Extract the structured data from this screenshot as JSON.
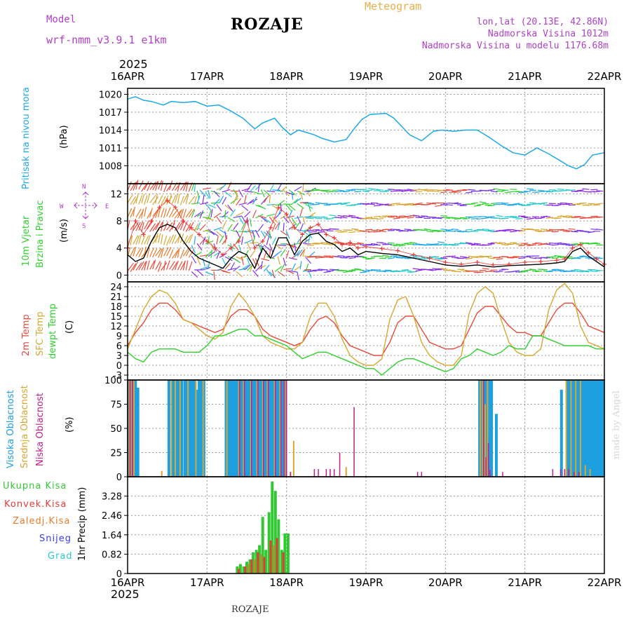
{
  "header": {
    "model_label": "Model",
    "model_name": "wrf-nmm_v3.9.1 e1km",
    "title": "ROZAJE",
    "meteogram_label": "Meteogram",
    "coords": "lon,lat (20.13E, 42.86N)",
    "elevation": "Nadmorska Visina 1012m",
    "model_elevation": "Nadmorska Visina u modelu 1176.68m",
    "year": "2025",
    "bottom_station": "ROZAJE",
    "credit": "made by Angel"
  },
  "colors": {
    "pressure": "#1ea8e8",
    "wind_speed": "#000000",
    "wind_gust_marker": "#ee3333",
    "t2m": "#e84a3a",
    "sfc": "#d6a832",
    "dewpt": "#2fd12f",
    "cloud_high": "#1e9fe0",
    "cloud_mid": "#d6a832",
    "cloud_low": "#c0208a",
    "precip_total": "#32c832",
    "precip_conv": "#e83a3a",
    "precip_frozen": "#e87a28",
    "snow": "#3a3ae8",
    "grad": "#28c8c8",
    "label_purple": "#b040c8",
    "label_orange": "#e8b048"
  },
  "x_ticks": [
    "16APR",
    "17APR",
    "18APR",
    "19APR",
    "20APR",
    "21APR",
    "22APR"
  ],
  "chart_data": [
    {
      "type": "line",
      "id": "pressure",
      "ylabel": "(hPa)",
      "side_labels": [
        "Pritisak na nivou mora"
      ],
      "ylim": [
        1005,
        1021
      ],
      "yticks": [
        1008,
        1011,
        1014,
        1017,
        1020
      ],
      "x_days": [
        0,
        0.1,
        0.2,
        0.3,
        0.45,
        0.55,
        0.7,
        0.85,
        1.0,
        1.15,
        1.3,
        1.45,
        1.6,
        1.7,
        1.85,
        1.95,
        2.05,
        2.15,
        2.25,
        2.35,
        2.45,
        2.6,
        2.75,
        2.85,
        2.95,
        3.05,
        3.15,
        3.25,
        3.35,
        3.45,
        3.55,
        3.7,
        3.85,
        3.95,
        4.1,
        4.25,
        4.4,
        4.55,
        4.7,
        4.85,
        5.0,
        5.15,
        5.3,
        5.45,
        5.55,
        5.65,
        5.75,
        5.85,
        6.0
      ],
      "series": [
        {
          "values": [
            1019.2,
            1019.6,
            1019.0,
            1018.8,
            1018.2,
            1018.8,
            1018.6,
            1018.8,
            1018.0,
            1018.2,
            1017.2,
            1016.0,
            1014.2,
            1015.2,
            1016.0,
            1014.4,
            1013.2,
            1014.0,
            1013.6,
            1013.2,
            1012.6,
            1012.0,
            1012.4,
            1014.2,
            1015.8,
            1016.6,
            1016.7,
            1016.8,
            1016.0,
            1014.6,
            1013.2,
            1012.2,
            1013.8,
            1014.0,
            1013.8,
            1014.0,
            1014.0,
            1012.8,
            1011.4,
            1010.2,
            1009.8,
            1011.0,
            1010.0,
            1008.8,
            1008.0,
            1007.5,
            1008.2,
            1009.8,
            1010.2
          ]
        }
      ]
    },
    {
      "type": "line",
      "id": "wind",
      "ylabel": "(m/s)",
      "side_labels": [
        "10m Vjetar",
        "Brzina i Pravac"
      ],
      "compass": [
        "N",
        "W",
        "E",
        "S"
      ],
      "ylim": [
        -1,
        13.5
      ],
      "yticks": [
        0,
        4,
        8,
        12
      ],
      "x_days": [
        0,
        0.1,
        0.2,
        0.3,
        0.4,
        0.5,
        0.6,
        0.7,
        0.8,
        0.9,
        1.0,
        1.1,
        1.2,
        1.3,
        1.4,
        1.5,
        1.6,
        1.7,
        1.8,
        1.9,
        2.0,
        2.1,
        2.2,
        2.3,
        2.4,
        2.5,
        2.6,
        2.7,
        2.8,
        2.9,
        3.0,
        3.2,
        3.4,
        3.6,
        3.8,
        4.0,
        4.2,
        4.4,
        4.6,
        4.8,
        5.0,
        5.2,
        5.4,
        5.5,
        5.6,
        5.7,
        5.8,
        5.9,
        6.0
      ],
      "series": [
        {
          "values": [
            3.0,
            2.0,
            2.5,
            5.0,
            7.0,
            7.5,
            7.0,
            5.0,
            3.5,
            2.5,
            2.0,
            1.5,
            1.0,
            2.5,
            3.5,
            3.0,
            1.0,
            4.0,
            2.5,
            5.5,
            5.5,
            3.0,
            5.0,
            6.0,
            6.2,
            5.0,
            4.5,
            3.5,
            4.0,
            3.0,
            3.5,
            3.2,
            3.0,
            2.5,
            2.0,
            1.5,
            1.3,
            1.5,
            1.2,
            1.4,
            1.5,
            1.6,
            1.8,
            2.0,
            3.5,
            4.0,
            2.8,
            2.0,
            1.2
          ]
        },
        {
          "values": [
            4.0,
            8.0,
            6.0,
            8.0,
            10.0,
            11.0,
            10.0,
            8.0,
            7.0,
            6.0,
            5.0,
            4.0,
            3.0,
            4.0,
            5.0,
            8.0,
            4.0,
            5.0,
            7.0,
            10.0,
            9.0,
            7.0,
            6.0,
            7.0,
            7.5,
            6.0,
            5.5,
            4.5,
            4.8,
            4.0,
            4.2,
            3.9,
            3.6,
            3.0,
            2.5,
            1.9,
            1.6,
            1.9,
            1.5,
            1.6,
            1.9,
            2.0,
            2.2,
            2.4,
            4.0,
            4.5,
            3.3,
            2.4,
            1.6
          ]
        }
      ]
    },
    {
      "type": "line",
      "id": "temperature",
      "ylabel": "(C)",
      "side_labels": [
        "2m Temp",
        "SFC Temp",
        "dewpt Temp"
      ],
      "ylim": [
        -4.5,
        25.5
      ],
      "yticks": [
        -3,
        0,
        3,
        6,
        9,
        12,
        15,
        18,
        21,
        24
      ],
      "x_days": [
        0,
        0.1,
        0.2,
        0.3,
        0.4,
        0.5,
        0.6,
        0.7,
        0.8,
        0.9,
        1.0,
        1.1,
        1.2,
        1.3,
        1.4,
        1.5,
        1.6,
        1.7,
        1.8,
        1.9,
        2.0,
        2.1,
        2.2,
        2.3,
        2.4,
        2.5,
        2.6,
        2.7,
        2.8,
        2.9,
        3.0,
        3.1,
        3.2,
        3.3,
        3.4,
        3.5,
        3.6,
        3.7,
        3.8,
        3.9,
        4.0,
        4.1,
        4.2,
        4.3,
        4.4,
        4.5,
        4.6,
        4.7,
        4.8,
        4.9,
        5.0,
        5.1,
        5.2,
        5.3,
        5.4,
        5.5,
        5.6,
        5.7,
        5.8,
        5.9,
        6.0
      ],
      "series": [
        {
          "name": "2m Temp",
          "values": [
            6,
            10,
            13,
            17,
            19,
            19,
            17,
            14,
            13,
            12,
            11,
            10,
            11,
            15,
            17,
            17,
            15,
            11,
            9,
            8,
            7,
            6,
            7,
            11,
            14,
            15,
            13,
            9,
            6,
            5,
            4,
            3,
            3,
            7,
            13,
            15,
            15,
            11,
            7,
            6,
            5,
            5,
            6,
            11,
            16,
            18,
            18,
            15,
            12,
            10,
            10,
            9,
            9,
            13,
            17,
            19,
            19,
            16,
            12,
            11,
            10
          ]
        },
        {
          "name": "SFC Temp",
          "values": [
            5,
            11,
            17,
            21,
            23,
            22,
            19,
            14,
            13,
            11,
            9,
            8,
            10,
            18,
            22,
            19,
            15,
            9,
            7,
            6,
            5,
            5,
            7,
            15,
            19,
            19,
            15,
            8,
            3,
            1,
            0,
            0,
            2,
            14,
            20,
            21,
            15,
            7,
            3,
            1,
            0,
            0,
            3,
            16,
            22,
            24,
            22,
            14,
            7,
            4,
            3,
            3,
            5,
            17,
            23,
            25,
            22,
            12,
            7,
            6,
            5
          ]
        },
        {
          "name": "dewpt Temp",
          "values": [
            4,
            2,
            1,
            4,
            5,
            5,
            5,
            4,
            4,
            4,
            6,
            9,
            9,
            10,
            11,
            11,
            9,
            9,
            8,
            7,
            6,
            4,
            2,
            3,
            4,
            4,
            3,
            2,
            1,
            0,
            -1,
            -1,
            -3,
            -1,
            1,
            2,
            2,
            1,
            0,
            -1,
            -2,
            -1,
            2,
            3,
            5,
            4,
            3,
            4,
            6,
            5,
            5,
            9,
            9,
            8,
            7,
            6,
            6,
            6,
            6,
            5,
            5
          ]
        }
      ]
    },
    {
      "type": "bar",
      "id": "clouds",
      "ylabel": "(%)",
      "side_labels": [
        "Visoka Oblacnost",
        "Srednja Oblacnost",
        "Niska Oblacnost"
      ],
      "ylim": [
        0,
        100
      ],
      "yticks": [
        0,
        25,
        50,
        75,
        100
      ],
      "series": [
        {
          "name": "Visoka Oblacnost",
          "x_days": [
            0.01,
            0.04,
            0.07,
            0.1,
            0.13,
            0.52,
            0.56,
            0.59,
            0.62,
            0.65,
            0.68,
            0.72,
            0.75,
            0.78,
            0.81,
            0.84,
            0.87,
            0.9,
            0.93,
            0.96,
            1.24,
            1.27,
            1.3,
            1.33,
            1.36,
            1.39,
            1.42,
            1.45,
            1.48,
            1.51,
            1.54,
            1.57,
            1.6,
            1.63,
            1.66,
            1.69,
            1.72,
            1.75,
            1.78,
            1.81,
            1.84,
            1.87,
            1.9,
            1.93,
            1.96,
            1.99,
            4.43,
            4.46,
            4.49,
            4.52,
            4.55,
            4.58,
            4.64,
            5.46,
            5.54,
            5.57,
            5.6,
            5.63,
            5.66,
            5.69,
            5.72,
            5.75,
            5.78,
            5.81,
            5.84,
            5.87,
            5.9,
            5.93,
            5.96,
            5.99
          ],
          "values": [
            100,
            100,
            100,
            100,
            92,
            100,
            100,
            100,
            100,
            100,
            100,
            100,
            100,
            100,
            100,
            100,
            90,
            100,
            100,
            100,
            100,
            100,
            100,
            100,
            100,
            100,
            100,
            100,
            100,
            100,
            100,
            100,
            100,
            100,
            100,
            100,
            100,
            100,
            100,
            100,
            100,
            100,
            100,
            100,
            100,
            100,
            100,
            100,
            100,
            100,
            100,
            100,
            65,
            90,
            100,
            100,
            100,
            100,
            100,
            100,
            100,
            100,
            100,
            100,
            100,
            100,
            100,
            100,
            100,
            100
          ]
        },
        {
          "name": "Srednja Oblacnost",
          "x_days": [
            0.02,
            0.05,
            0.08,
            0.43,
            0.55,
            0.6,
            0.66,
            0.76,
            0.86,
            0.95,
            1.25,
            1.4,
            1.46,
            1.55,
            1.63,
            1.7,
            1.76,
            1.85,
            1.92,
            1.98,
            2.05,
            2.09,
            2.75,
            4.44,
            4.47,
            4.5,
            4.53,
            5.52,
            5.58,
            5.64,
            5.7,
            5.76,
            5.82
          ],
          "values": [
            100,
            100,
            100,
            6,
            100,
            100,
            100,
            100,
            100,
            100,
            100,
            100,
            100,
            100,
            100,
            100,
            100,
            100,
            100,
            100,
            5,
            37,
            10,
            100,
            100,
            75,
            100,
            100,
            100,
            100,
            100,
            12,
            8
          ]
        },
        {
          "name": "Niska Oblacnost",
          "x_days": [
            0.03,
            0.06,
            1.41,
            1.47,
            1.56,
            1.64,
            1.71,
            1.77,
            1.86,
            1.93,
            1.97,
            2.0,
            2.05,
            2.35,
            2.4,
            2.5,
            2.55,
            2.6,
            2.67,
            2.85,
            3.65,
            3.7,
            4.48,
            4.51,
            4.54,
            4.56,
            4.72,
            5.35,
            5.45,
            5.5,
            5.55,
            5.62,
            5.68
          ],
          "values": [
            100,
            100,
            100,
            100,
            100,
            100,
            100,
            100,
            100,
            100,
            100,
            100,
            5,
            8,
            8,
            8,
            8,
            8,
            25,
            72,
            5,
            5,
            100,
            20,
            35,
            7,
            5,
            8,
            8,
            8,
            8,
            5,
            5
          ]
        }
      ]
    },
    {
      "type": "bar",
      "id": "precip",
      "ylabel": "1hr Precip (mm)",
      "side_labels": [
        "Ukupna Kisa",
        "Konvek.Kisa",
        "Zaledj.Kisa",
        "Snijeg",
        "Grad"
      ],
      "ylim": [
        0,
        4.1
      ],
      "yticks": [
        0,
        0.82,
        1.64,
        2.46,
        3.28
      ],
      "series": [
        {
          "name": "Ukupna Kisa",
          "x_days": [
            1.38,
            1.42,
            1.46,
            1.5,
            1.54,
            1.58,
            1.62,
            1.66,
            1.7,
            1.74,
            1.78,
            1.82,
            1.86,
            1.9,
            1.94,
            1.98,
            2.02
          ],
          "values": [
            0.3,
            0.4,
            0.3,
            0.5,
            0.6,
            0.9,
            1.0,
            1.2,
            2.4,
            1.0,
            2.6,
            3.9,
            3.5,
            2.3,
            1.0,
            1.7,
            1.7
          ]
        },
        {
          "name": "Konvek.Kisa",
          "x_days": [
            1.4,
            1.48,
            1.56,
            1.64,
            1.72,
            1.8,
            1.88,
            1.96
          ],
          "values": [
            0.2,
            0.3,
            0.6,
            0.9,
            0.7,
            1.4,
            1.5,
            0.9
          ]
        },
        {
          "name": "Zaledj.Kisa",
          "x_days": [
            1.52,
            1.6,
            1.68,
            1.84
          ],
          "values": [
            0.4,
            0.6,
            0.8,
            1.2
          ]
        }
      ]
    }
  ]
}
